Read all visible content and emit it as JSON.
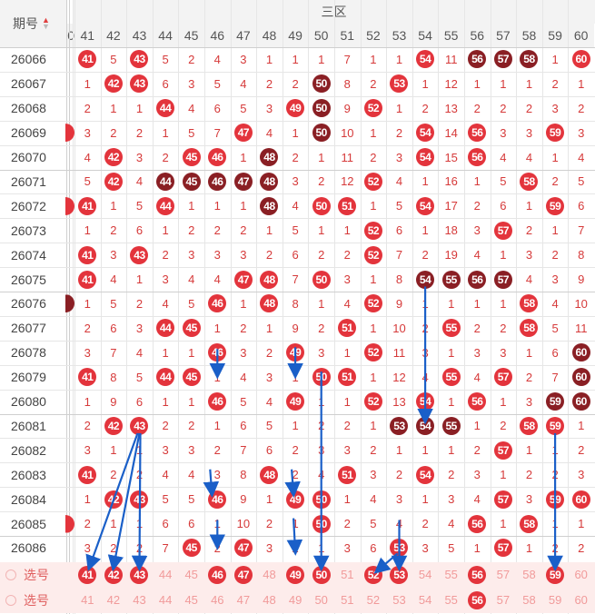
{
  "header": {
    "period_label": "期号",
    "sort_icon": "sort-icon",
    "zone_label": "三区",
    "partial_col_label": "0"
  },
  "columns": [
    "41",
    "42",
    "43",
    "44",
    "45",
    "46",
    "47",
    "48",
    "49",
    "50",
    "51",
    "52",
    "53",
    "54",
    "55",
    "56",
    "57",
    "58",
    "59",
    "60"
  ],
  "rows": [
    {
      "period": "26066",
      "cells": [
        "41",
        "5",
        "43",
        "5",
        "2",
        "4",
        "3",
        "1",
        "1",
        "1",
        "7",
        "1",
        "1",
        "54",
        "11",
        "56",
        "57",
        "58",
        "1",
        "60"
      ],
      "styles": [
        "r",
        "m",
        "r",
        "m",
        "m",
        "m",
        "m",
        "m",
        "m",
        "m",
        "m",
        "m",
        "m",
        "r",
        "m",
        "d",
        "d",
        "d",
        "m",
        "r"
      ],
      "left": ""
    },
    {
      "period": "26067",
      "cells": [
        "1",
        "42",
        "43",
        "6",
        "3",
        "5",
        "4",
        "2",
        "2",
        "50",
        "8",
        "2",
        "53",
        "1",
        "12",
        "1",
        "1",
        "1",
        "2",
        "1"
      ],
      "styles": [
        "m",
        "r",
        "r",
        "m",
        "m",
        "m",
        "m",
        "m",
        "m",
        "d",
        "m",
        "m",
        "r",
        "m",
        "m",
        "m",
        "m",
        "m",
        "m",
        "m"
      ],
      "left": ""
    },
    {
      "period": "26068",
      "cells": [
        "2",
        "1",
        "1",
        "44",
        "4",
        "6",
        "5",
        "3",
        "49",
        "50",
        "9",
        "52",
        "1",
        "2",
        "13",
        "2",
        "2",
        "2",
        "3",
        "2"
      ],
      "styles": [
        "m",
        "m",
        "m",
        "r",
        "m",
        "m",
        "m",
        "m",
        "r",
        "d",
        "m",
        "r",
        "m",
        "m",
        "m",
        "m",
        "m",
        "m",
        "m",
        "m"
      ],
      "left": ""
    },
    {
      "period": "26069",
      "cells": [
        "3",
        "2",
        "2",
        "1",
        "5",
        "7",
        "47",
        "4",
        "1",
        "50",
        "10",
        "1",
        "2",
        "54",
        "14",
        "56",
        "3",
        "3",
        "59",
        "3"
      ],
      "styles": [
        "m",
        "m",
        "m",
        "m",
        "m",
        "m",
        "r",
        "m",
        "m",
        "d",
        "m",
        "m",
        "m",
        "r",
        "m",
        "r",
        "m",
        "m",
        "r",
        "m"
      ],
      "left": "r"
    },
    {
      "period": "26070",
      "cells": [
        "4",
        "42",
        "3",
        "2",
        "45",
        "46",
        "1",
        "48",
        "2",
        "1",
        "11",
        "2",
        "3",
        "54",
        "15",
        "56",
        "4",
        "4",
        "1",
        "4"
      ],
      "styles": [
        "m",
        "r",
        "m",
        "m",
        "r",
        "r",
        "m",
        "d",
        "m",
        "m",
        "m",
        "m",
        "m",
        "r",
        "m",
        "r",
        "m",
        "m",
        "m",
        "m"
      ],
      "left": ""
    },
    {
      "period": "26071",
      "cells": [
        "5",
        "42",
        "4",
        "44",
        "45",
        "46",
        "47",
        "48",
        "3",
        "2",
        "12",
        "52",
        "4",
        "1",
        "16",
        "1",
        "5",
        "58",
        "2",
        "5"
      ],
      "styles": [
        "m",
        "r",
        "m",
        "d",
        "d",
        "d",
        "d",
        "d",
        "m",
        "m",
        "m",
        "r",
        "m",
        "m",
        "m",
        "m",
        "m",
        "r",
        "m",
        "m"
      ],
      "left": ""
    },
    {
      "period": "26072",
      "cells": [
        "41",
        "1",
        "5",
        "44",
        "1",
        "1",
        "1",
        "48",
        "4",
        "50",
        "51",
        "1",
        "5",
        "54",
        "17",
        "2",
        "6",
        "1",
        "59",
        "6"
      ],
      "styles": [
        "r",
        "m",
        "m",
        "r",
        "m",
        "m",
        "m",
        "d",
        "m",
        "r",
        "r",
        "m",
        "m",
        "r",
        "m",
        "m",
        "m",
        "m",
        "r",
        "m"
      ],
      "left": "r"
    },
    {
      "period": "26073",
      "cells": [
        "1",
        "2",
        "6",
        "1",
        "2",
        "2",
        "2",
        "1",
        "5",
        "1",
        "1",
        "52",
        "6",
        "1",
        "18",
        "3",
        "57",
        "2",
        "1",
        "7"
      ],
      "styles": [
        "m",
        "m",
        "m",
        "m",
        "m",
        "m",
        "m",
        "m",
        "m",
        "m",
        "m",
        "r",
        "m",
        "m",
        "m",
        "m",
        "r",
        "m",
        "m",
        "m"
      ],
      "left": ""
    },
    {
      "period": "26074",
      "cells": [
        "41",
        "3",
        "43",
        "2",
        "3",
        "3",
        "3",
        "2",
        "6",
        "2",
        "2",
        "52",
        "7",
        "2",
        "19",
        "4",
        "1",
        "3",
        "2",
        "8"
      ],
      "styles": [
        "r",
        "m",
        "r",
        "m",
        "m",
        "m",
        "m",
        "m",
        "m",
        "m",
        "m",
        "r",
        "m",
        "m",
        "m",
        "m",
        "m",
        "m",
        "m",
        "m"
      ],
      "left": ""
    },
    {
      "period": "26075",
      "cells": [
        "41",
        "4",
        "1",
        "3",
        "4",
        "4",
        "47",
        "48",
        "7",
        "50",
        "3",
        "1",
        "8",
        "54",
        "55",
        "56",
        "57",
        "4",
        "3",
        "9"
      ],
      "styles": [
        "r",
        "m",
        "m",
        "m",
        "m",
        "m",
        "r",
        "r",
        "m",
        "r",
        "m",
        "m",
        "m",
        "d",
        "d",
        "d",
        "d",
        "m",
        "m",
        "m"
      ],
      "left": ""
    },
    {
      "period": "26076",
      "cells": [
        "1",
        "5",
        "2",
        "4",
        "5",
        "46",
        "1",
        "48",
        "8",
        "1",
        "4",
        "52",
        "9",
        "1",
        "1",
        "1",
        "1",
        "58",
        "4",
        "10"
      ],
      "styles": [
        "m",
        "m",
        "m",
        "m",
        "m",
        "r",
        "m",
        "r",
        "m",
        "m",
        "m",
        "r",
        "m",
        "m",
        "m",
        "m",
        "m",
        "r",
        "m",
        "m"
      ],
      "left": "d"
    },
    {
      "period": "26077",
      "cells": [
        "2",
        "6",
        "3",
        "44",
        "45",
        "1",
        "2",
        "1",
        "9",
        "2",
        "51",
        "1",
        "10",
        "2",
        "55",
        "2",
        "2",
        "58",
        "5",
        "11"
      ],
      "styles": [
        "m",
        "m",
        "m",
        "r",
        "r",
        "m",
        "m",
        "m",
        "m",
        "m",
        "r",
        "m",
        "m",
        "m",
        "r",
        "m",
        "m",
        "r",
        "m",
        "m"
      ],
      "left": ""
    },
    {
      "period": "26078",
      "cells": [
        "3",
        "7",
        "4",
        "1",
        "1",
        "46",
        "3",
        "2",
        "49",
        "3",
        "1",
        "52",
        "11",
        "3",
        "1",
        "3",
        "3",
        "1",
        "6",
        "60"
      ],
      "styles": [
        "m",
        "m",
        "m",
        "m",
        "m",
        "r",
        "m",
        "m",
        "r",
        "m",
        "m",
        "r",
        "m",
        "m",
        "m",
        "m",
        "m",
        "m",
        "m",
        "d"
      ],
      "left": ""
    },
    {
      "period": "26079",
      "cells": [
        "41",
        "8",
        "5",
        "44",
        "45",
        "1",
        "4",
        "3",
        "1",
        "50",
        "51",
        "1",
        "12",
        "4",
        "55",
        "4",
        "57",
        "2",
        "7",
        "60"
      ],
      "styles": [
        "r",
        "m",
        "m",
        "r",
        "r",
        "m",
        "m",
        "m",
        "m",
        "r",
        "r",
        "m",
        "m",
        "m",
        "r",
        "m",
        "r",
        "m",
        "m",
        "d"
      ],
      "left": ""
    },
    {
      "period": "26080",
      "cells": [
        "1",
        "9",
        "6",
        "1",
        "1",
        "46",
        "5",
        "4",
        "49",
        "1",
        "1",
        "52",
        "13",
        "54",
        "1",
        "56",
        "1",
        "3",
        "59",
        "60"
      ],
      "styles": [
        "m",
        "m",
        "m",
        "m",
        "m",
        "r",
        "m",
        "m",
        "r",
        "m",
        "m",
        "r",
        "m",
        "r",
        "m",
        "r",
        "m",
        "m",
        "d",
        "d"
      ],
      "left": ""
    },
    {
      "period": "26081",
      "cells": [
        "2",
        "42",
        "43",
        "2",
        "2",
        "1",
        "6",
        "5",
        "1",
        "2",
        "2",
        "1",
        "53",
        "54",
        "55",
        "1",
        "2",
        "58",
        "59",
        "1"
      ],
      "styles": [
        "m",
        "r",
        "r",
        "m",
        "m",
        "m",
        "m",
        "m",
        "m",
        "m",
        "m",
        "m",
        "d",
        "d",
        "d",
        "m",
        "m",
        "r",
        "r",
        "m"
      ],
      "left": ""
    },
    {
      "period": "26082",
      "cells": [
        "3",
        "1",
        "1",
        "3",
        "3",
        "2",
        "7",
        "6",
        "2",
        "3",
        "3",
        "2",
        "1",
        "1",
        "1",
        "2",
        "57",
        "1",
        "1",
        "2"
      ],
      "styles": [
        "m",
        "m",
        "m",
        "m",
        "m",
        "m",
        "m",
        "m",
        "m",
        "m",
        "m",
        "m",
        "m",
        "m",
        "m",
        "m",
        "r",
        "m",
        "m",
        "m"
      ],
      "left": ""
    },
    {
      "period": "26083",
      "cells": [
        "41",
        "2",
        "2",
        "4",
        "4",
        "3",
        "8",
        "48",
        "2",
        "4",
        "51",
        "3",
        "2",
        "54",
        "2",
        "3",
        "1",
        "2",
        "2",
        "3"
      ],
      "styles": [
        "r",
        "m",
        "m",
        "m",
        "m",
        "m",
        "m",
        "r",
        "m",
        "m",
        "r",
        "m",
        "m",
        "r",
        "m",
        "m",
        "m",
        "m",
        "m",
        "m"
      ],
      "left": ""
    },
    {
      "period": "26084",
      "cells": [
        "1",
        "42",
        "43",
        "5",
        "5",
        "46",
        "9",
        "1",
        "49",
        "50",
        "1",
        "4",
        "3",
        "1",
        "3",
        "4",
        "57",
        "3",
        "59",
        "60"
      ],
      "styles": [
        "m",
        "r",
        "r",
        "m",
        "m",
        "r",
        "m",
        "m",
        "r",
        "r",
        "m",
        "m",
        "m",
        "m",
        "m",
        "m",
        "r",
        "m",
        "r",
        "r"
      ],
      "left": ""
    },
    {
      "period": "26085",
      "cells": [
        "2",
        "1",
        "1",
        "6",
        "6",
        "1",
        "10",
        "2",
        "1",
        "50",
        "2",
        "5",
        "4",
        "2",
        "4",
        "56",
        "1",
        "58",
        "1",
        "1"
      ],
      "styles": [
        "m",
        "m",
        "m",
        "m",
        "m",
        "m",
        "m",
        "m",
        "m",
        "r",
        "m",
        "m",
        "m",
        "m",
        "m",
        "r",
        "m",
        "r",
        "m",
        "m"
      ],
      "left": "r"
    },
    {
      "period": "26086",
      "cells": [
        "3",
        "2",
        "2",
        "7",
        "45",
        "2",
        "47",
        "3",
        "2",
        "1",
        "3",
        "6",
        "53",
        "3",
        "5",
        "1",
        "57",
        "1",
        "2",
        "2"
      ],
      "styles": [
        "m",
        "m",
        "m",
        "m",
        "r",
        "m",
        "r",
        "m",
        "m",
        "m",
        "m",
        "m",
        "r",
        "m",
        "m",
        "m",
        "r",
        "m",
        "m",
        "m"
      ],
      "left": ""
    }
  ],
  "pick_rows": [
    {
      "label": "选号",
      "cells": [
        "41",
        "42",
        "43",
        "44",
        "45",
        "46",
        "47",
        "48",
        "49",
        "50",
        "51",
        "52",
        "53",
        "54",
        "55",
        "56",
        "57",
        "58",
        "59",
        "60"
      ],
      "styles": [
        "r",
        "r",
        "r",
        "p",
        "p",
        "r",
        "r",
        "p",
        "r",
        "r",
        "p",
        "r",
        "r",
        "p",
        "p",
        "r",
        "p",
        "p",
        "r",
        "p"
      ]
    },
    {
      "label": "选号",
      "cells": [
        "41",
        "42",
        "43",
        "44",
        "45",
        "46",
        "47",
        "48",
        "49",
        "50",
        "51",
        "52",
        "53",
        "54",
        "55",
        "56",
        "57",
        "58",
        "59",
        "60"
      ],
      "styles": [
        "p",
        "p",
        "p",
        "p",
        "p",
        "p",
        "p",
        "p",
        "p",
        "p",
        "p",
        "p",
        "p",
        "p",
        "p",
        "r",
        "p",
        "p",
        "p",
        "p"
      ]
    }
  ],
  "colors": {
    "red": "#e3343c",
    "dark": "#8a1f24",
    "pale": "#f28d8f",
    "arrow": "#1a5fc8",
    "pick_bg": "#fdeceb"
  }
}
